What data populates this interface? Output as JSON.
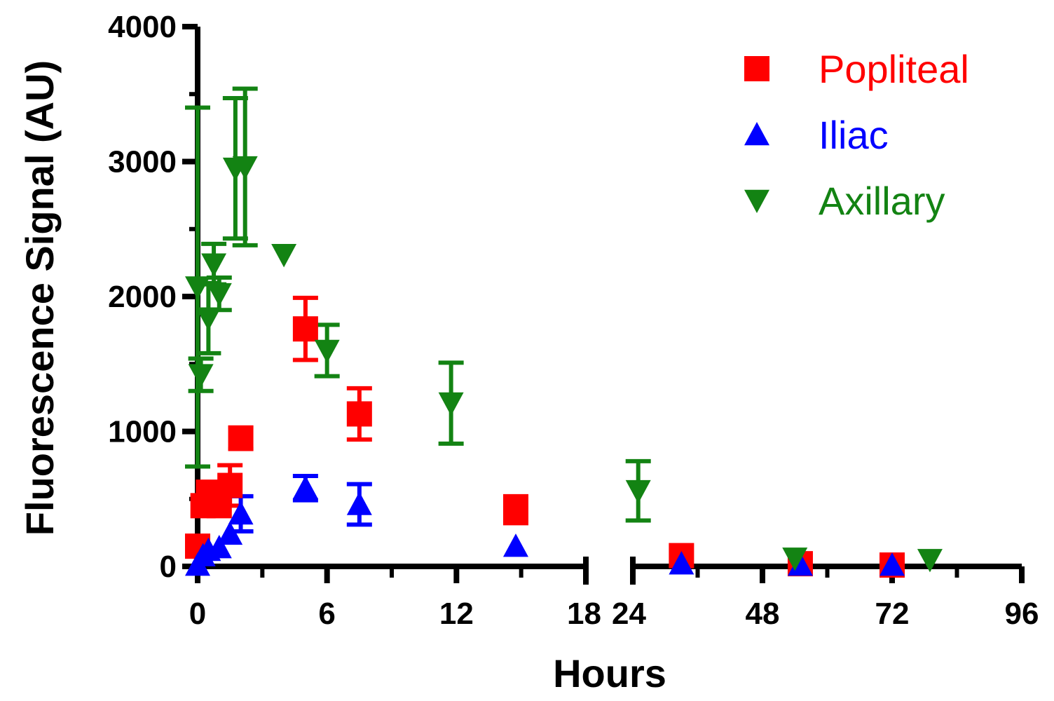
{
  "chart_data": {
    "type": "scatter",
    "xlabel": "Hours",
    "ylabel": "Fluorescence Signal (AU)",
    "ylim": [
      0,
      4000
    ],
    "yticks": [
      0,
      1000,
      2000,
      3000,
      4000
    ],
    "x_axis_break": {
      "segments": [
        [
          0,
          18
        ],
        [
          24,
          96
        ]
      ]
    },
    "xticks_left": [
      0,
      6,
      12,
      18
    ],
    "xticks_right": [
      24,
      48,
      72,
      96
    ],
    "tick_labels_x": [
      "0",
      "6",
      "12",
      "18",
      "24",
      "48",
      "72",
      "96"
    ],
    "tick_labels_y": [
      "0",
      "1000",
      "2000",
      "3000",
      "4000"
    ],
    "legend_position": "top-right",
    "grid": false,
    "series": [
      {
        "name": "Popliteal",
        "marker": "square",
        "color": "#ff0000",
        "points": [
          {
            "x": 0.0,
            "y": 150,
            "err": 0
          },
          {
            "x": 0.25,
            "y": 450,
            "err": 0
          },
          {
            "x": 0.5,
            "y": 550,
            "err": 0
          },
          {
            "x": 0.75,
            "y": 500,
            "err": 0
          },
          {
            "x": 1.0,
            "y": 450,
            "err": 0
          },
          {
            "x": 1.5,
            "y": 600,
            "err": 150
          },
          {
            "x": 2.0,
            "y": 950,
            "err": 80
          },
          {
            "x": 5.0,
            "y": 1760,
            "err": 230
          },
          {
            "x": 7.5,
            "y": 1130,
            "err": 190
          },
          {
            "x": 14.75,
            "y": 420,
            "err": 100
          },
          {
            "x": 33,
            "y": 80,
            "err": 0
          },
          {
            "x": 55,
            "y": 20,
            "err": 0
          },
          {
            "x": 72,
            "y": 10,
            "err": 0
          }
        ]
      },
      {
        "name": "Iliac",
        "marker": "triangle-up",
        "color": "#0000ff",
        "points": [
          {
            "x": 0.0,
            "y": 10,
            "err": 0
          },
          {
            "x": 0.25,
            "y": 80,
            "err": 0
          },
          {
            "x": 0.5,
            "y": 120,
            "err": 0
          },
          {
            "x": 1.0,
            "y": 140,
            "err": 0
          },
          {
            "x": 1.5,
            "y": 240,
            "err": 0
          },
          {
            "x": 2.0,
            "y": 390,
            "err": 130
          },
          {
            "x": 5.0,
            "y": 580,
            "err": 90
          },
          {
            "x": 7.5,
            "y": 460,
            "err": 150
          },
          {
            "x": 14.75,
            "y": 150,
            "err": 0
          },
          {
            "x": 33,
            "y": 20,
            "err": 0
          },
          {
            "x": 55,
            "y": 10,
            "err": 0
          },
          {
            "x": 72,
            "y": 10,
            "err": 0
          }
        ]
      },
      {
        "name": "Axillary",
        "marker": "triangle-down",
        "color": "#138313",
        "points": [
          {
            "x": 0.0,
            "y": 2070,
            "err": 1330
          },
          {
            "x": 0.15,
            "y": 1420,
            "err": 120
          },
          {
            "x": 0.5,
            "y": 1840,
            "err": 260
          },
          {
            "x": 0.75,
            "y": 2240,
            "err": 150
          },
          {
            "x": 1.0,
            "y": 2020,
            "err": 120
          },
          {
            "x": 1.75,
            "y": 2950,
            "err": 520
          },
          {
            "x": 2.2,
            "y": 2960,
            "err": 580
          },
          {
            "x": 4.0,
            "y": 2310,
            "err": 0
          },
          {
            "x": 6.0,
            "y": 1600,
            "err": 190
          },
          {
            "x": 11.75,
            "y": 1210,
            "err": 300
          },
          {
            "x": 25,
            "y": 560,
            "err": 220
          },
          {
            "x": 54,
            "y": 60,
            "err": 0
          },
          {
            "x": 79,
            "y": 50,
            "err": 0
          }
        ]
      }
    ]
  }
}
